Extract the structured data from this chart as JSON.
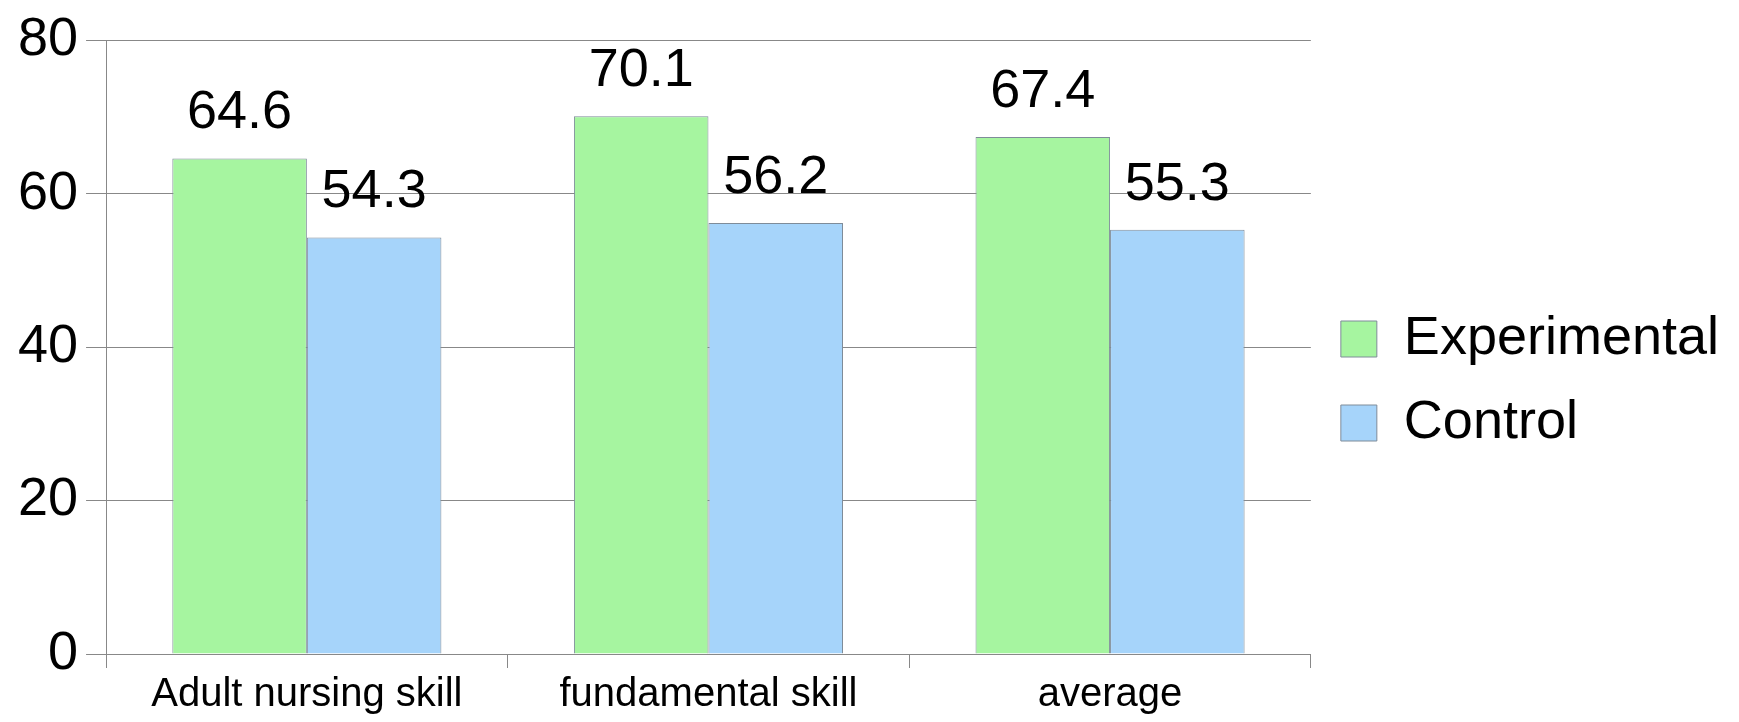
{
  "chart_data": {
    "type": "bar",
    "categories": [
      "Adult nursing skill",
      "fundamental skill",
      "average"
    ],
    "series": [
      {
        "name": "Experimental",
        "color": "#a6f5a0",
        "values": [
          64.6,
          70.1,
          67.4
        ]
      },
      {
        "name": "Control",
        "color": "#a6d4fa",
        "values": [
          54.3,
          56.2,
          55.3
        ]
      }
    ],
    "ylim": [
      0,
      80
    ],
    "yticks": [
      0,
      20,
      40,
      60,
      80
    ],
    "grid": "y",
    "legend": "right",
    "data_labels": true
  }
}
